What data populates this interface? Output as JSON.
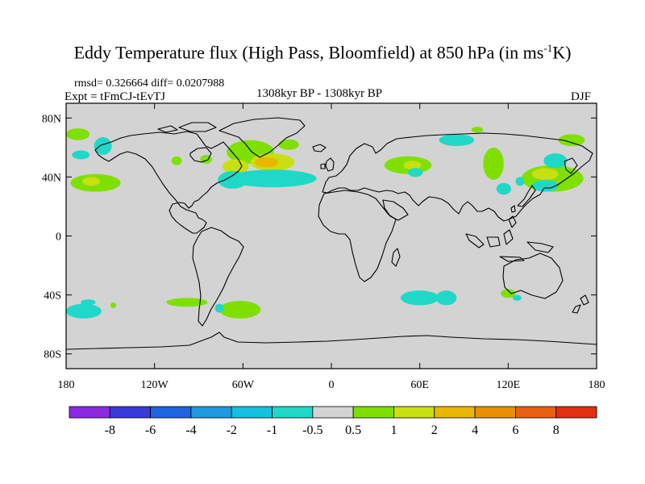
{
  "title": {
    "main": "Eddy Temperature flux (High Pass, Bloomfield) at 850 hPa (in ms",
    "sup": "-1",
    "end": "K)"
  },
  "stats": "rmsd= 0.326664 diff= 0.0207988",
  "experiment": "Expt = tFmCJ-tEvTJ",
  "period": "1308kyr BP - 1308kyr BP",
  "season": "DJF",
  "lat_ticks": [
    {
      "label": "80N",
      "lat": 80
    },
    {
      "label": "40N",
      "lat": 40
    },
    {
      "label": "0",
      "lat": 0
    },
    {
      "label": "40S",
      "lat": -40
    },
    {
      "label": "80S",
      "lat": -80
    }
  ],
  "lon_ticks": [
    {
      "label": "180",
      "lon": -180
    },
    {
      "label": "120W",
      "lon": -120
    },
    {
      "label": "60W",
      "lon": -60
    },
    {
      "label": "0",
      "lon": 0
    },
    {
      "label": "60E",
      "lon": 60
    },
    {
      "label": "120E",
      "lon": 120
    },
    {
      "label": "180",
      "lon": 180
    }
  ],
  "colors": {
    "background_field": "#d3d3d3",
    "coast": "#000000"
  },
  "colorbar": {
    "colors": [
      "#8a2be2",
      "#3a3ad8",
      "#1e64e0",
      "#1e9ae0",
      "#14c0e0",
      "#20d8c8",
      "#d3d3d3",
      "#7fe000",
      "#c8e010",
      "#e8b800",
      "#e89000",
      "#e86010",
      "#e03010"
    ],
    "labels": [
      "-8",
      "-6",
      "-4",
      "-2",
      "-1",
      "-0.5",
      "0.5",
      "1",
      "2",
      "4",
      "6",
      "8"
    ]
  },
  "chart_data": {
    "type": "heatmap",
    "projection": "cylindrical-equidistant",
    "lon_range": [
      -180,
      180
    ],
    "lat_range": [
      -90,
      90
    ],
    "anomalies": [
      {
        "lon": -55,
        "lat": 57,
        "rx": 16,
        "ry": 8,
        "level": 1
      },
      {
        "lon": -40,
        "lat": 50,
        "rx": 15,
        "ry": 6,
        "level": 2
      },
      {
        "lon": -44,
        "lat": 50,
        "rx": 8,
        "ry": 3.5,
        "level": 3
      },
      {
        "lon": -65,
        "lat": 47,
        "rx": 9,
        "ry": 5,
        "level": 2
      },
      {
        "lon": -40,
        "lat": 39,
        "rx": 30,
        "ry": 6,
        "level": -1
      },
      {
        "lon": -67,
        "lat": 38,
        "rx": 10,
        "ry": 6,
        "level": -1
      },
      {
        "lon": -29,
        "lat": 62,
        "rx": 7,
        "ry": 3.5,
        "level": 1
      },
      {
        "lon": -85,
        "lat": 52,
        "rx": 4,
        "ry": 3,
        "level": 1
      },
      {
        "lon": -105,
        "lat": 51,
        "rx": 3.5,
        "ry": 3,
        "level": 1
      },
      {
        "lon": -160,
        "lat": 36,
        "rx": 17,
        "ry": 6,
        "level": 1
      },
      {
        "lon": -163,
        "lat": 37,
        "rx": 6,
        "ry": 3,
        "level": 2
      },
      {
        "lon": -172,
        "lat": 69,
        "rx": 8,
        "ry": 4,
        "level": 1
      },
      {
        "lon": -155,
        "lat": 61,
        "rx": 6,
        "ry": 6,
        "level": -1
      },
      {
        "lon": -170,
        "lat": 55,
        "rx": 6,
        "ry": 3,
        "level": -1
      },
      {
        "lon": 52,
        "lat": 48,
        "rx": 16,
        "ry": 6,
        "level": 1
      },
      {
        "lon": 55,
        "lat": 48,
        "rx": 6,
        "ry": 3,
        "level": 2
      },
      {
        "lon": 57,
        "lat": 43,
        "rx": 5,
        "ry": 3,
        "level": -1
      },
      {
        "lon": 85,
        "lat": 65,
        "rx": 12,
        "ry": 4,
        "level": -1
      },
      {
        "lon": 99,
        "lat": 72,
        "rx": 4,
        "ry": 2,
        "level": 1
      },
      {
        "lon": 110,
        "lat": 49,
        "rx": 7,
        "ry": 11,
        "level": 1
      },
      {
        "lon": 150,
        "lat": 39,
        "rx": 21,
        "ry": 9,
        "level": 1
      },
      {
        "lon": 145,
        "lat": 42,
        "rx": 9,
        "ry": 4,
        "level": 2
      },
      {
        "lon": 145,
        "lat": 34,
        "rx": 9,
        "ry": 4,
        "level": -1
      },
      {
        "lon": 152,
        "lat": 51,
        "rx": 8,
        "ry": 5,
        "level": -1
      },
      {
        "lon": 117,
        "lat": 32,
        "rx": 5,
        "ry": 4,
        "level": -1
      },
      {
        "lon": 128,
        "lat": 37,
        "rx": 3,
        "ry": 3,
        "level": -1
      },
      {
        "lon": 163,
        "lat": 65,
        "rx": 9,
        "ry": 4,
        "level": 1
      },
      {
        "lon": -168,
        "lat": -51,
        "rx": 12,
        "ry": 5,
        "level": -1
      },
      {
        "lon": -165,
        "lat": -45,
        "rx": 5,
        "ry": 2,
        "level": -1
      },
      {
        "lon": -98,
        "lat": -45,
        "rx": 14,
        "ry": 3,
        "level": 1
      },
      {
        "lon": -62,
        "lat": -50,
        "rx": 14,
        "ry": 6,
        "level": 1
      },
      {
        "lon": -76,
        "lat": -49,
        "rx": 3,
        "ry": 3,
        "level": -1
      },
      {
        "lon": 60,
        "lat": -42,
        "rx": 13,
        "ry": 5,
        "level": -1
      },
      {
        "lon": 78,
        "lat": -42,
        "rx": 7,
        "ry": 5,
        "level": -1
      },
      {
        "lon": 120,
        "lat": -39,
        "rx": 5,
        "ry": 3,
        "level": 1
      },
      {
        "lon": 126,
        "lat": -42,
        "rx": 3,
        "ry": 2,
        "level": -1
      },
      {
        "lon": -148,
        "lat": -47,
        "rx": 2,
        "ry": 2,
        "level": 1
      }
    ]
  }
}
